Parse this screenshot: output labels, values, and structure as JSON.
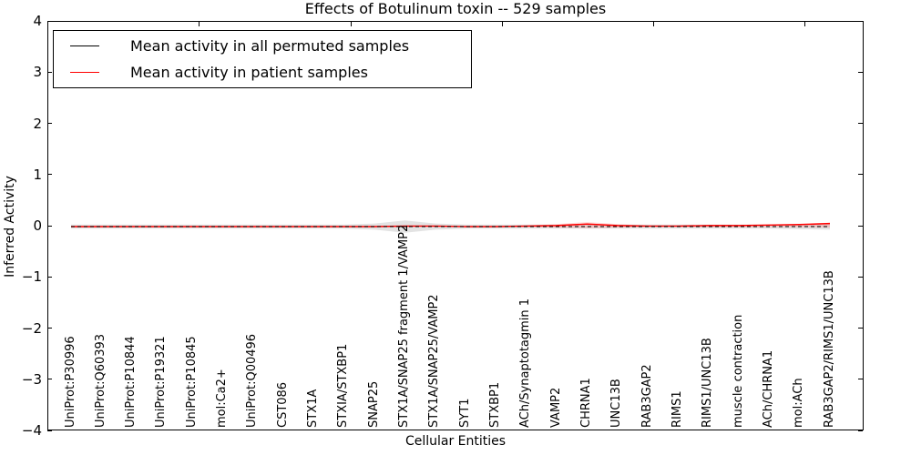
{
  "title": "Effects of Botulinum toxin -- 529 samples",
  "legend": {
    "entries": [
      {
        "label": "Mean activity in all permuted samples",
        "color": "#000000"
      },
      {
        "label": "Mean activity in patient samples",
        "color": "#ff0000"
      }
    ]
  },
  "axes": {
    "ytick_labels": [
      "4",
      "3",
      "2",
      "1",
      "0",
      "−1",
      "−2",
      "−3",
      "−4"
    ]
  },
  "chart_data": {
    "type": "line",
    "title": "Effects of Botulinum toxin -- 529 samples",
    "xlabel": "Cellular Entities",
    "ylabel": "Inferred Activity",
    "ylim": [
      -4,
      4
    ],
    "yticks": [
      4,
      3,
      2,
      1,
      0,
      -1,
      -2,
      -3,
      -4
    ],
    "grid": false,
    "legend_position": "upper left",
    "categories": [
      "UniProt:P30996",
      "UniProt:Q60393",
      "UniProt:P10844",
      "UniProt:P19321",
      "UniProt:P10845",
      "mol:Ca2+",
      "UniProt:Q00496",
      "CST086",
      "STX1A",
      "STXIA/STXBP1",
      "SNAP25",
      "STX1A/SNAP25 fragment 1/VAMP2",
      "STX1A/SNAP25/VAMP2",
      "SYT1",
      "STXBP1",
      "ACh/Synaptotagmin 1",
      "VAMP2",
      "CHRNA1",
      "UNC13B",
      "RAB3GAP2",
      "RIMS1",
      "RIMS1/UNC13B",
      "muscle contraction",
      "ACh/CHRNA1",
      "mol:ACh",
      "RAB3GAP2/RIMS1/UNC13B"
    ],
    "series": [
      {
        "name": "Mean activity in all permuted samples",
        "color": "#000000",
        "style": "dashed",
        "values": [
          0,
          0,
          0,
          0,
          0,
          0,
          0,
          0,
          0,
          0,
          0,
          0,
          0,
          0,
          0,
          0,
          0,
          0,
          0,
          0,
          0,
          0,
          0,
          0,
          0,
          0
        ]
      },
      {
        "name": "Mean activity in patient samples",
        "color": "#ff0000",
        "style": "solid",
        "values": [
          0,
          0,
          0,
          0,
          0,
          0,
          0,
          0,
          0,
          0,
          0,
          0.01,
          0.01,
          0,
          0,
          0.01,
          0.02,
          0.05,
          0.02,
          0.01,
          0.01,
          0.02,
          0.02,
          0.03,
          0.04,
          0.06
        ]
      }
    ],
    "bands": [
      {
        "name": "permuted samples activity range",
        "color": "#999999",
        "opacity": 0.28,
        "upper": [
          0.04,
          0.04,
          0.04,
          0.04,
          0.04,
          0.04,
          0.04,
          0.04,
          0.04,
          0.04,
          0.06,
          0.12,
          0.06,
          0.04,
          0.04,
          0.04,
          0.04,
          0.04,
          0.04,
          0.04,
          0.04,
          0.04,
          0.04,
          0.04,
          0.05,
          0.06
        ],
        "lower": [
          -0.04,
          -0.04,
          -0.04,
          -0.04,
          -0.04,
          -0.04,
          -0.04,
          -0.04,
          -0.04,
          -0.04,
          -0.06,
          -0.12,
          -0.06,
          -0.04,
          -0.04,
          -0.04,
          -0.04,
          -0.04,
          -0.04,
          -0.04,
          -0.04,
          -0.04,
          -0.04,
          -0.04,
          -0.05,
          -0.06
        ],
        "mean": [
          0,
          0,
          0,
          0,
          0,
          0,
          0,
          0,
          0,
          0,
          0,
          0,
          0,
          0,
          0,
          0,
          0,
          0,
          0,
          0,
          0,
          0,
          0,
          0,
          0,
          0
        ]
      },
      {
        "name": "patient samples activity range",
        "color": "#ff0000",
        "opacity": 0.15,
        "upper": [
          0.01,
          0.01,
          0.01,
          0.01,
          0.01,
          0.01,
          0.01,
          0.01,
          0.01,
          0.01,
          0.01,
          0.02,
          0.01,
          0.01,
          0.01,
          0.02,
          0.05,
          0.09,
          0.05,
          0.02,
          0.01,
          0.02,
          0.03,
          0.04,
          0.05,
          0.08
        ],
        "lower": [
          -0.01,
          -0.01,
          -0.01,
          -0.01,
          -0.01,
          -0.01,
          -0.01,
          -0.01,
          -0.01,
          -0.01,
          -0.01,
          -0.01,
          -0.01,
          -0.01,
          -0.01,
          -0.01,
          -0.02,
          -0.03,
          -0.02,
          -0.01,
          -0.01,
          -0.01,
          -0.01,
          -0.01,
          -0.01,
          -0.02
        ]
      }
    ]
  }
}
